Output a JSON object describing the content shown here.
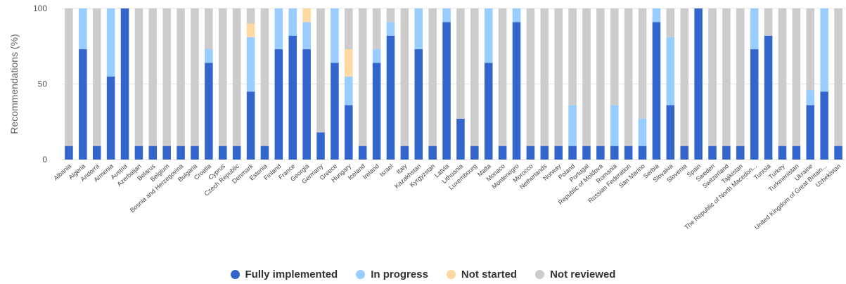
{
  "chart_data": {
    "type": "bar",
    "stacked": true,
    "ylabel": "Recommendations (%)",
    "ylim": [
      0,
      100
    ],
    "yticks": [
      "0",
      "50",
      "100"
    ],
    "grid": true,
    "legend_position": "bottom",
    "categories": [
      "Albania",
      "Algeria",
      "Andorra",
      "Armenia",
      "Austria",
      "Azerbaijan",
      "Belarus",
      "Belgium",
      "Bosnia and Herzegovina",
      "Bulgaria",
      "Croatia",
      "Cyprus",
      "Czech Republic",
      "Denmark",
      "Estonia",
      "Finland",
      "France",
      "Georgia",
      "Germany",
      "Greece",
      "Hungary",
      "Iceland",
      "Ireland",
      "Israel",
      "Italy",
      "Kazakhstan",
      "Kyrgyzstan",
      "Latvia",
      "Lithuania",
      "Luxembourg",
      "Malta",
      "Monaco",
      "Montenegro",
      "Morocco",
      "Netherlands",
      "Norway",
      "Poland",
      "Portugal",
      "Republic of Moldova",
      "Romania",
      "Russian Federation",
      "San Marino",
      "Serbia",
      "Slovakia",
      "Slovenia",
      "Spain",
      "Sweden",
      "Switzerland",
      "Tajikistan",
      "The Republic of North Macedon...",
      "Tunisia",
      "Turkey",
      "Turkmenistan",
      "Ukraine",
      "United Kingdom of Great Britain...",
      "Uzbekistan"
    ],
    "series": [
      {
        "name": "Fully implemented",
        "color": "#3366cc",
        "values": [
          9,
          73,
          9,
          55,
          100,
          9,
          9,
          9,
          9,
          9,
          64,
          9,
          9,
          45,
          9,
          73,
          82,
          73,
          18,
          64,
          36,
          9,
          64,
          82,
          9,
          73,
          9,
          91,
          27,
          9,
          64,
          9,
          91,
          9,
          9,
          9,
          9,
          9,
          9,
          9,
          9,
          9,
          91,
          36,
          9,
          100,
          9,
          9,
          9,
          73,
          82,
          9,
          9,
          36,
          45,
          9
        ]
      },
      {
        "name": "In progress",
        "color": "#99ccff",
        "values": [
          0,
          27,
          0,
          45,
          0,
          0,
          0,
          0,
          0,
          0,
          9,
          0,
          0,
          36,
          0,
          27,
          18,
          18,
          0,
          36,
          19,
          0,
          9,
          9,
          0,
          27,
          0,
          9,
          0,
          0,
          36,
          0,
          9,
          0,
          0,
          0,
          27,
          0,
          0,
          27,
          0,
          18,
          9,
          45,
          0,
          0,
          0,
          0,
          0,
          27,
          0,
          0,
          0,
          10,
          55,
          0
        ]
      },
      {
        "name": "Not started",
        "color": "#ffd9a0",
        "values": [
          0,
          0,
          0,
          0,
          0,
          0,
          0,
          0,
          0,
          0,
          0,
          0,
          0,
          9,
          0,
          0,
          0,
          9,
          0,
          0,
          18,
          0,
          0,
          0,
          0,
          0,
          0,
          0,
          0,
          0,
          0,
          0,
          0,
          0,
          0,
          0,
          0,
          0,
          0,
          0,
          0,
          0,
          0,
          0,
          0,
          0,
          0,
          0,
          0,
          0,
          0,
          0,
          0,
          0,
          0,
          0
        ]
      },
      {
        "name": "Not reviewed",
        "color": "#cccccc",
        "values": [
          91,
          0,
          91,
          0,
          0,
          91,
          91,
          91,
          91,
          91,
          27,
          91,
          91,
          10,
          91,
          0,
          0,
          0,
          82,
          0,
          27,
          91,
          27,
          9,
          91,
          0,
          91,
          0,
          73,
          91,
          0,
          91,
          0,
          91,
          91,
          91,
          64,
          91,
          91,
          64,
          91,
          73,
          0,
          19,
          91,
          0,
          91,
          91,
          91,
          0,
          18,
          91,
          91,
          54,
          0,
          91
        ]
      }
    ]
  }
}
